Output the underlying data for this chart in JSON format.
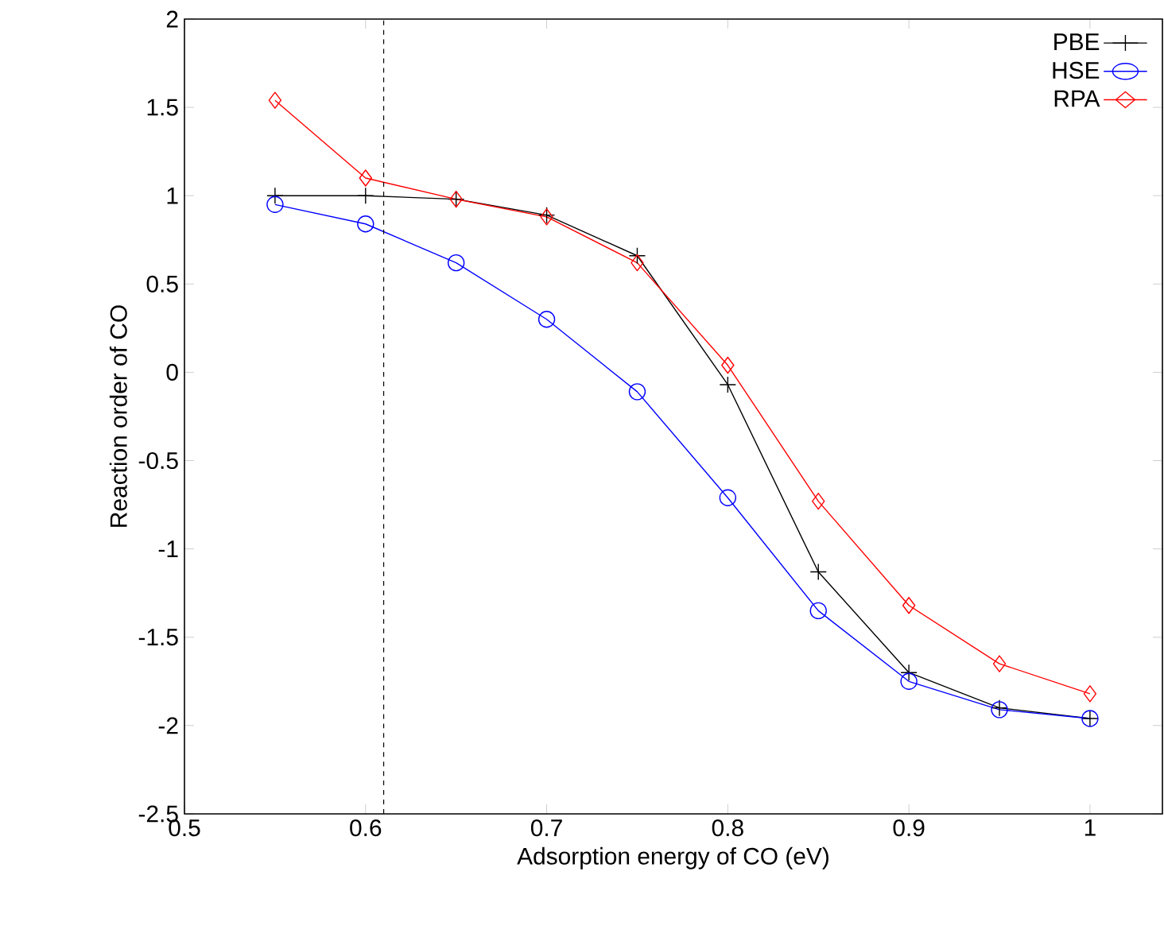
{
  "chart_data": {
    "type": "line",
    "xlabel": "Adsorption energy of CO (eV)",
    "ylabel": "Reaction order of CO",
    "x": [
      0.55,
      0.6,
      0.65,
      0.7,
      0.75,
      0.8,
      0.85,
      0.9,
      0.95,
      1.0
    ],
    "series": [
      {
        "name": "PBE",
        "color": "#000000",
        "marker": "cross",
        "values": [
          1.0,
          1.0,
          0.98,
          0.89,
          0.66,
          -0.07,
          -1.13,
          -1.7,
          -1.9,
          -1.96
        ]
      },
      {
        "name": "HSE",
        "color": "#0000ff",
        "marker": "circle",
        "values": [
          0.95,
          0.84,
          0.62,
          0.3,
          -0.11,
          -0.71,
          -1.35,
          -1.75,
          -1.91,
          -1.96
        ]
      },
      {
        "name": "RPA",
        "color": "#ff0000",
        "marker": "diamond",
        "values": [
          1.54,
          1.1,
          0.98,
          0.88,
          0.62,
          0.04,
          -0.73,
          -1.32,
          -1.65,
          -1.82
        ]
      }
    ],
    "xlim": [
      0.5,
      1.04
    ],
    "ylim": [
      -2.5,
      2
    ],
    "xticks": [
      0.5,
      0.6,
      0.7,
      0.8,
      0.9,
      1
    ],
    "yticks": [
      -2.5,
      -2,
      -1.5,
      -1,
      -0.5,
      0,
      0.5,
      1,
      1.5,
      2
    ],
    "ref_lines": [
      {
        "axis": "x",
        "value": 0.61,
        "color": "#000000",
        "line_style": "dashed"
      }
    ],
    "legend": "top right",
    "line_style": "solid"
  }
}
